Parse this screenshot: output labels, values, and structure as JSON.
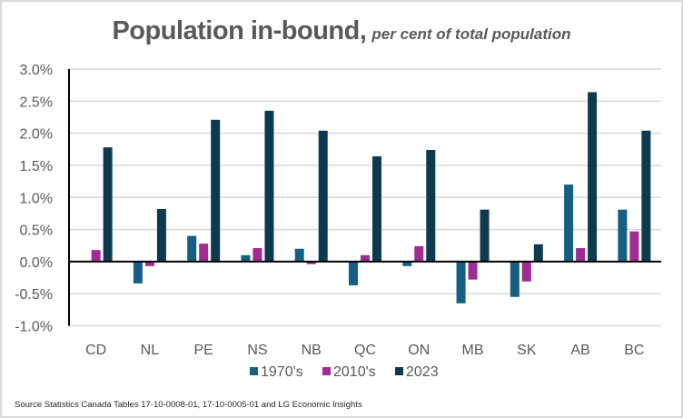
{
  "chart_data": {
    "type": "bar",
    "title": "Population in-bound,",
    "subtitle": "per cent of total population",
    "xlabel": "",
    "ylabel": "",
    "categories": [
      "CD",
      "NL",
      "PE",
      "NS",
      "NB",
      "QC",
      "ON",
      "MB",
      "SK",
      "AB",
      "BC"
    ],
    "series": [
      {
        "name": "1970's",
        "color": "#156082",
        "values": [
          0.0,
          -0.34,
          0.4,
          0.1,
          0.2,
          -0.37,
          -0.07,
          -0.65,
          -0.55,
          1.2,
          0.81
        ]
      },
      {
        "name": "2010's",
        "color": "#A02B93",
        "values": [
          0.18,
          -0.07,
          0.28,
          0.21,
          -0.04,
          0.1,
          0.24,
          -0.28,
          -0.31,
          0.21,
          0.47
        ]
      },
      {
        "name": "2023",
        "color": "#0E3A4F",
        "values": [
          1.78,
          0.82,
          2.21,
          2.35,
          2.04,
          1.64,
          1.74,
          0.81,
          0.27,
          2.64,
          2.04
        ]
      }
    ],
    "ylim": [
      -1.0,
      3.0
    ],
    "yticks": [
      3.0,
      2.5,
      2.0,
      1.5,
      1.0,
      0.5,
      0.0,
      -0.5,
      -1.0
    ],
    "ytick_labels": [
      "3.0%",
      "2.5%",
      "2.0%",
      "1.5%",
      "1.0%",
      "0.5%",
      "0.0%",
      "-0.5%",
      "-1.0%"
    ],
    "grid": true,
    "legend_position": "bottom",
    "source": "Source Statistics Canada Tables 17-10-0008-01,  17-10-0005-01  and LG Economic Insights"
  },
  "colors": {
    "gridline": "#d9d9d9",
    "axis": "#000000",
    "text": "#595959"
  }
}
